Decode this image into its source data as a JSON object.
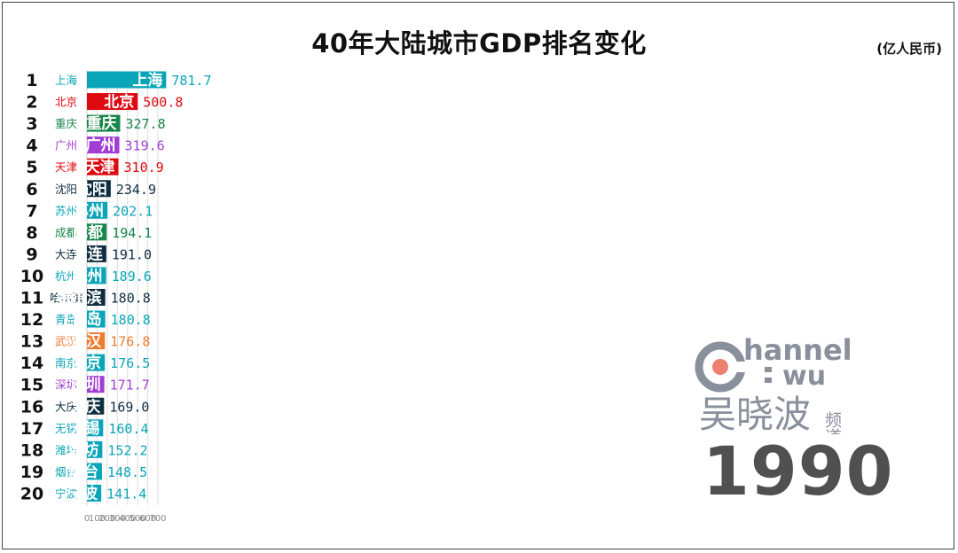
{
  "title": "40年大陆城市GDP排名变化",
  "unit": "(亿人民币)",
  "year": "1990",
  "watermark": {
    "brand_latin_top": "hannel",
    "brand_latin_bottom": "wu",
    "brand_cn": "吴晓波",
    "brand_cn_suffix": "频道"
  },
  "chart_data": {
    "type": "bar",
    "orientation": "horizontal",
    "ranks": [
      "1",
      "2",
      "3",
      "4",
      "5",
      "6",
      "7",
      "8",
      "9",
      "10",
      "11",
      "12",
      "13",
      "14",
      "15",
      "16",
      "17",
      "18",
      "19",
      "20"
    ],
    "categories": [
      "上海",
      "北京",
      "重庆",
      "广州",
      "天津",
      "沈阳",
      "苏州",
      "成都",
      "大连",
      "杭州",
      "哈尔滨",
      "青岛",
      "武汉",
      "南京",
      "深圳",
      "大庆",
      "无锡",
      "潍坊",
      "烟台",
      "宁波"
    ],
    "values": [
      781.7,
      500.8,
      327.8,
      319.6,
      310.9,
      234.9,
      202.1,
      194.1,
      191.0,
      189.6,
      180.8,
      180.8,
      176.8,
      176.5,
      171.7,
      169.0,
      160.4,
      152.2,
      148.5,
      141.4
    ],
    "value_labels": [
      "781.7",
      "500.8",
      "327.8",
      "319.6",
      "310.9",
      "234.9",
      "202.1",
      "194.1",
      "191.0",
      "189.6",
      "180.8",
      "180.8",
      "176.8",
      "176.5",
      "171.7",
      "169.0",
      "160.4",
      "152.2",
      "148.5",
      "141.4"
    ],
    "colors": [
      "#0aa5b8",
      "#dd0a12",
      "#16864a",
      "#a03ed3",
      "#dd0a12",
      "#0f2d40",
      "#0aa5b8",
      "#16864a",
      "#0f2d40",
      "#0aa5b8",
      "#0f2d40",
      "#0aa5b8",
      "#ee7b30",
      "#0aa5b8",
      "#a03ed3",
      "#0f2d40",
      "#0aa5b8",
      "#0aa5b8",
      "#0aa5b8",
      "#0aa5b8"
    ],
    "xticks": [
      0,
      100,
      200,
      300,
      400,
      500,
      600,
      700
    ],
    "xtick_labels": [
      "0",
      "100",
      "200",
      "300",
      "400",
      "500",
      "600",
      "700"
    ],
    "xlim": [
      0,
      780
    ],
    "grid": true
  }
}
